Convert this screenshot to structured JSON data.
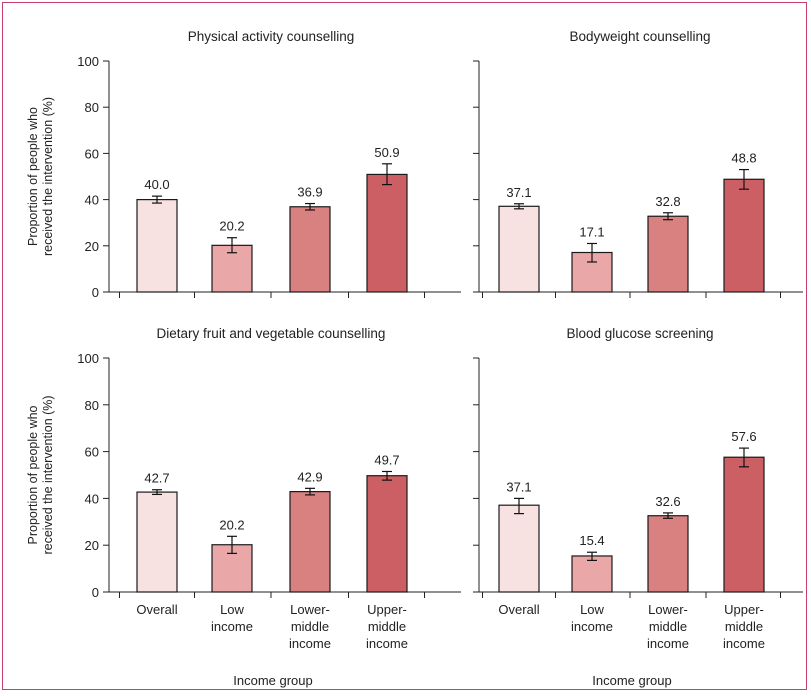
{
  "colors": {
    "frame": "#c7416a",
    "bar_overall": "#f7e1e1",
    "bar_low": "#e9a7a8",
    "bar_lower_middle": "#d98081",
    "bar_upper_middle": "#cb5f63",
    "bar_edge": "#1a1a1a"
  },
  "chart_data": [
    {
      "type": "bar",
      "title": "Physical activity counselling",
      "categories": [
        "Overall",
        "Low income",
        "Lower-middle income",
        "Upper-middle income"
      ],
      "values": [
        40.0,
        20.2,
        36.9,
        50.9
      ],
      "value_labels": [
        "40.0",
        "20.2",
        "36.9",
        "50.9"
      ],
      "ci_low": [
        38.5,
        17.0,
        35.5,
        46.5
      ],
      "ci_high": [
        41.5,
        23.5,
        38.3,
        55.5
      ],
      "ylabel": "Proportion of people who received the intervention (%)",
      "xlabel": "",
      "ylim": [
        0,
        100
      ],
      "yticks": [
        0,
        20,
        40,
        60,
        80,
        100
      ]
    },
    {
      "type": "bar",
      "title": "Bodyweight counselling",
      "categories": [
        "Overall",
        "Low income",
        "Lower-middle income",
        "Upper-middle income"
      ],
      "values": [
        37.1,
        17.1,
        32.8,
        48.8
      ],
      "value_labels": [
        "37.1",
        "17.1",
        "32.8",
        "48.8"
      ],
      "ci_low": [
        36.0,
        13.0,
        31.3,
        44.5
      ],
      "ci_high": [
        38.2,
        21.0,
        34.3,
        53.0
      ],
      "ylabel": "",
      "xlabel": "",
      "ylim": [
        0,
        100
      ],
      "yticks": [
        0,
        20,
        40,
        60,
        80,
        100
      ]
    },
    {
      "type": "bar",
      "title": "Dietary fruit  and vegetable counselling",
      "categories": [
        "Overall",
        "Low income",
        "Lower-middle income",
        "Upper-middle income"
      ],
      "values": [
        42.7,
        20.2,
        42.9,
        49.7
      ],
      "value_labels": [
        "42.7",
        "20.2",
        "42.9",
        "49.7"
      ],
      "ci_low": [
        41.7,
        16.5,
        41.5,
        47.8
      ],
      "ci_high": [
        43.7,
        23.8,
        44.3,
        51.5
      ],
      "ylabel": "Proportion of people who received the intervention (%)",
      "xlabel": "Income group",
      "ylim": [
        0,
        100
      ],
      "yticks": [
        0,
        20,
        40,
        60,
        80,
        100
      ]
    },
    {
      "type": "bar",
      "title": "Blood glucose screening",
      "categories": [
        "Overall",
        "Low income",
        "Lower-middle income",
        "Upper-middle income"
      ],
      "values": [
        37.1,
        15.4,
        32.6,
        57.6
      ],
      "value_labels": [
        "37.1",
        "15.4",
        "32.6",
        "57.6"
      ],
      "ci_low": [
        33.5,
        13.5,
        31.5,
        53.5
      ],
      "ci_high": [
        40.0,
        17.0,
        33.8,
        61.5
      ],
      "ylabel": "",
      "xlabel": "Income group",
      "ylim": [
        0,
        100
      ],
      "yticks": [
        0,
        20,
        40,
        60,
        80,
        100
      ]
    }
  ],
  "category_lines": [
    [
      "Overall"
    ],
    [
      "Low",
      "income"
    ],
    [
      "Lower-",
      "middle",
      "income"
    ],
    [
      "Upper-",
      "middle",
      "income"
    ]
  ],
  "ylabel_lines": [
    "Proportion of people who",
    "received the intervention (%)"
  ]
}
